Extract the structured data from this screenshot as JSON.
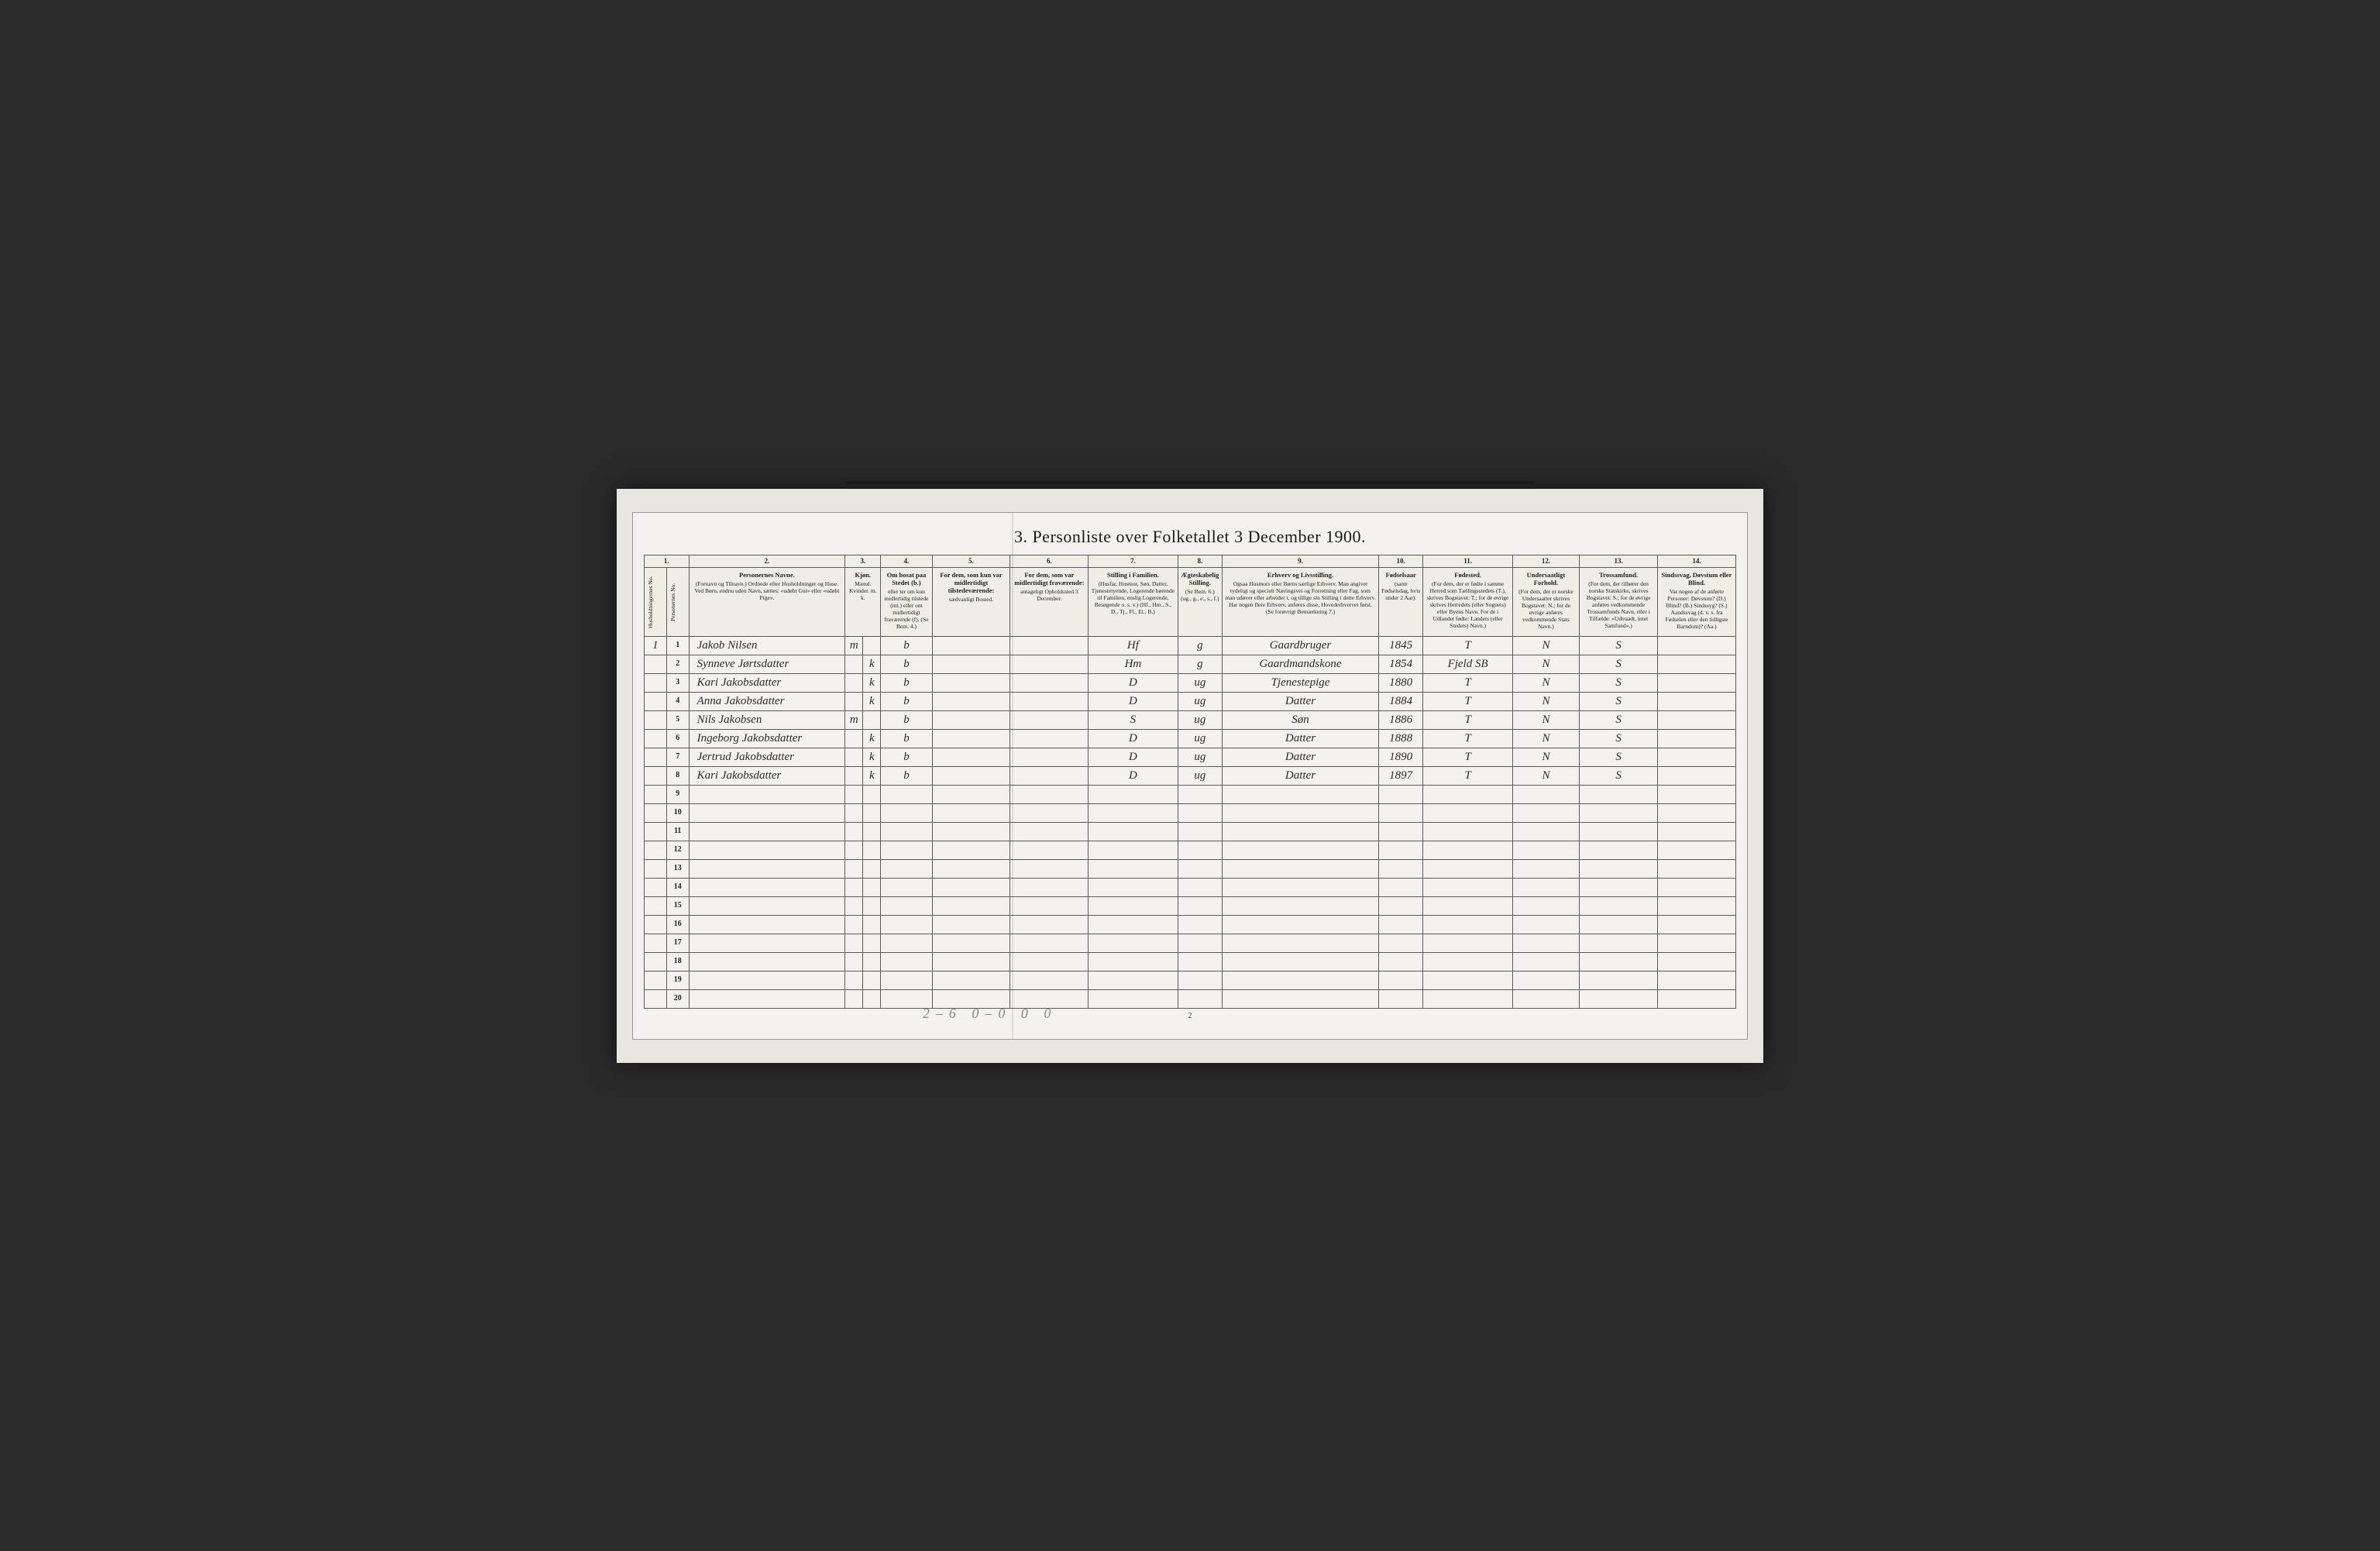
{
  "title": "3. Personliste over Folketallet 3 December 1900.",
  "page_number": "2",
  "tally": "2–6  0–0   0 0",
  "columns": {
    "nums": [
      "1.",
      "2.",
      "3.",
      "4.",
      "5.",
      "6.",
      "7.",
      "8.",
      "9.",
      "10.",
      "11.",
      "12.",
      "13.",
      "14."
    ],
    "headers": [
      {
        "title": "Husholdningernes No.",
        "sub": ""
      },
      {
        "title": "Personernes No.",
        "sub": ""
      },
      {
        "title": "Personernes Navne.",
        "sub": "(Fornavn og Tilnavn.) Ordnede efter Husholdninger og Huse. Ved Børn, endnu uden Navn, sættes: «udøbt Gut» eller «udøbt Pige»."
      },
      {
        "title": "Kjøn.",
        "sub": "Mænd. Kvinder. m. k."
      },
      {
        "title": "Om bosat paa Stedet (b.)",
        "sub": "eller ier om kun midlertidig tilstede (mt.) eller om midlertidigt fraværende (f). (Se Bem. 4.)"
      },
      {
        "title": "For dem, som kun var midlertidigt tilstedeværende:",
        "sub": "sædvanligt Bosted."
      },
      {
        "title": "For dem, som var midlertidigt fraværende:",
        "sub": "antageligt Opholdssted 3 December."
      },
      {
        "title": "Stilling i Familien.",
        "sub": "(Husfar, Husmor, Søn, Datter, Tjenestetyende, Logerende hørende til Familien, enslig Logerende, Besøgende o. s. v.) (Hf., Hm., S., D., Tj., Fl., El., B.)"
      },
      {
        "title": "Ægteskabelig Stilling.",
        "sub": "(Se Bem. 6.) (ug., g., e., s., f.)"
      },
      {
        "title": "Erhverv og Livsstilling.",
        "sub": "Ogsaa Husmors eller Børns særlige Erhverv. Man angiver tydeligt og specielt Næringsvei og Forretning eller Fag, som man udøver eller arbeider i, og tillige sin Stilling i dette Erhverv. Har nogen flere Erhverv, anføres disse, Hovederhvervet først. (Se forøvrigt Bemærkning 7.)"
      },
      {
        "title": "Fødselsaar",
        "sub": "(samt Fødselsdag, hvis under 2 Aar)."
      },
      {
        "title": "Fødested.",
        "sub": "(For dem, der er fødte i samme Herred som Tællingsstedets (T.), skrives Bogstavet: T.; for de øvrige skrives Herredets (eller Sognets) eller Byens Navn. For de i Udlandet fødte: Landets (eller Stedets) Navn.)"
      },
      {
        "title": "Undersaatligt Forhold.",
        "sub": "(For dem, der er norske Undersaatter skrives Bogstavet: N.; for de øvrige anføres vedkommende Stats Navn.)"
      },
      {
        "title": "Trossamfund.",
        "sub": "(For dem, der tilhører den norske Statskirke, skrives Bogstavet: S.; for de øvrige anføres vedkommende Trossamfunds Navn, eller i Tilfælde: «Udtraadt, intet Samfund».)"
      },
      {
        "title": "Sindssvag, Døvstum eller Blind.",
        "sub": "Var nogen af de anførte Personer: Døvstum? (D.) Blind? (B.) Sindssyg? (S.) Aandssvag (d. v. s. fra Fødselen eller den tidligste Barndom)? (Aa.)"
      }
    ]
  },
  "rows": [
    {
      "hh": "1",
      "p": "1",
      "name": "Jakob Nilsen",
      "sex": "m",
      "res": "b",
      "c5": "",
      "c6": "",
      "fam": "Hf",
      "mar": "g",
      "occ": "Gaardbruger",
      "year": "1845",
      "birthplace": "T",
      "nat": "N",
      "rel": "S",
      "c14": ""
    },
    {
      "hh": "",
      "p": "2",
      "name": "Synneve Jørtsdatter",
      "sex": "k",
      "res": "b",
      "c5": "",
      "c6": "",
      "fam": "Hm",
      "mar": "g",
      "occ": "Gaardmandskone",
      "year": "1854",
      "birthplace": "Fjeld SB",
      "nat": "N",
      "rel": "S",
      "c14": ""
    },
    {
      "hh": "",
      "p": "3",
      "name": "Kari Jakobsdatter",
      "sex": "k",
      "res": "b",
      "c5": "",
      "c6": "",
      "fam": "D",
      "mar": "ug",
      "occ": "Tjenestepige",
      "year": "1880",
      "birthplace": "T",
      "nat": "N",
      "rel": "S",
      "c14": ""
    },
    {
      "hh": "",
      "p": "4",
      "name": "Anna Jakobsdatter",
      "sex": "k",
      "res": "b",
      "c5": "",
      "c6": "",
      "fam": "D",
      "mar": "ug",
      "occ": "Datter",
      "year": "1884",
      "birthplace": "T",
      "nat": "N",
      "rel": "S",
      "c14": ""
    },
    {
      "hh": "",
      "p": "5",
      "name": "Nils Jakobsen",
      "sex": "m",
      "res": "b",
      "c5": "",
      "c6": "",
      "fam": "S",
      "mar": "ug",
      "occ": "Søn",
      "year": "1886",
      "birthplace": "T",
      "nat": "N",
      "rel": "S",
      "c14": ""
    },
    {
      "hh": "",
      "p": "6",
      "name": "Ingeborg Jakobsdatter",
      "sex": "k",
      "res": "b",
      "c5": "",
      "c6": "",
      "fam": "D",
      "mar": "ug",
      "occ": "Datter",
      "year": "1888",
      "birthplace": "T",
      "nat": "N",
      "rel": "S",
      "c14": ""
    },
    {
      "hh": "",
      "p": "7",
      "name": "Jertrud Jakobsdatter",
      "sex": "k",
      "res": "b",
      "c5": "",
      "c6": "",
      "fam": "D",
      "mar": "ug",
      "occ": "Datter",
      "year": "1890",
      "birthplace": "T",
      "nat": "N",
      "rel": "S",
      "c14": ""
    },
    {
      "hh": "",
      "p": "8",
      "name": "Kari Jakobsdatter",
      "sex": "k",
      "res": "b",
      "c5": "",
      "c6": "",
      "fam": "D",
      "mar": "ug",
      "occ": "Datter",
      "year": "1897",
      "birthplace": "T",
      "nat": "N",
      "rel": "S",
      "c14": ""
    },
    {
      "hh": "",
      "p": "9",
      "name": "",
      "sex": "",
      "res": "",
      "c5": "",
      "c6": "",
      "fam": "",
      "mar": "",
      "occ": "",
      "year": "",
      "birthplace": "",
      "nat": "",
      "rel": "",
      "c14": ""
    },
    {
      "hh": "",
      "p": "10",
      "name": "",
      "sex": "",
      "res": "",
      "c5": "",
      "c6": "",
      "fam": "",
      "mar": "",
      "occ": "",
      "year": "",
      "birthplace": "",
      "nat": "",
      "rel": "",
      "c14": ""
    },
    {
      "hh": "",
      "p": "11",
      "name": "",
      "sex": "",
      "res": "",
      "c5": "",
      "c6": "",
      "fam": "",
      "mar": "",
      "occ": "",
      "year": "",
      "birthplace": "",
      "nat": "",
      "rel": "",
      "c14": ""
    },
    {
      "hh": "",
      "p": "12",
      "name": "",
      "sex": "",
      "res": "",
      "c5": "",
      "c6": "",
      "fam": "",
      "mar": "",
      "occ": "",
      "year": "",
      "birthplace": "",
      "nat": "",
      "rel": "",
      "c14": ""
    },
    {
      "hh": "",
      "p": "13",
      "name": "",
      "sex": "",
      "res": "",
      "c5": "",
      "c6": "",
      "fam": "",
      "mar": "",
      "occ": "",
      "year": "",
      "birthplace": "",
      "nat": "",
      "rel": "",
      "c14": ""
    },
    {
      "hh": "",
      "p": "14",
      "name": "",
      "sex": "",
      "res": "",
      "c5": "",
      "c6": "",
      "fam": "",
      "mar": "",
      "occ": "",
      "year": "",
      "birthplace": "",
      "nat": "",
      "rel": "",
      "c14": ""
    },
    {
      "hh": "",
      "p": "15",
      "name": "",
      "sex": "",
      "res": "",
      "c5": "",
      "c6": "",
      "fam": "",
      "mar": "",
      "occ": "",
      "year": "",
      "birthplace": "",
      "nat": "",
      "rel": "",
      "c14": ""
    },
    {
      "hh": "",
      "p": "16",
      "name": "",
      "sex": "",
      "res": "",
      "c5": "",
      "c6": "",
      "fam": "",
      "mar": "",
      "occ": "",
      "year": "",
      "birthplace": "",
      "nat": "",
      "rel": "",
      "c14": ""
    },
    {
      "hh": "",
      "p": "17",
      "name": "",
      "sex": "",
      "res": "",
      "c5": "",
      "c6": "",
      "fam": "",
      "mar": "",
      "occ": "",
      "year": "",
      "birthplace": "",
      "nat": "",
      "rel": "",
      "c14": ""
    },
    {
      "hh": "",
      "p": "18",
      "name": "",
      "sex": "",
      "res": "",
      "c5": "",
      "c6": "",
      "fam": "",
      "mar": "",
      "occ": "",
      "year": "",
      "birthplace": "",
      "nat": "",
      "rel": "",
      "c14": ""
    },
    {
      "hh": "",
      "p": "19",
      "name": "",
      "sex": "",
      "res": "",
      "c5": "",
      "c6": "",
      "fam": "",
      "mar": "",
      "occ": "",
      "year": "",
      "birthplace": "",
      "nat": "",
      "rel": "",
      "c14": ""
    },
    {
      "hh": "",
      "p": "20",
      "name": "",
      "sex": "",
      "res": "",
      "c5": "",
      "c6": "",
      "fam": "",
      "mar": "",
      "occ": "",
      "year": "",
      "birthplace": "",
      "nat": "",
      "rel": "",
      "c14": ""
    }
  ]
}
